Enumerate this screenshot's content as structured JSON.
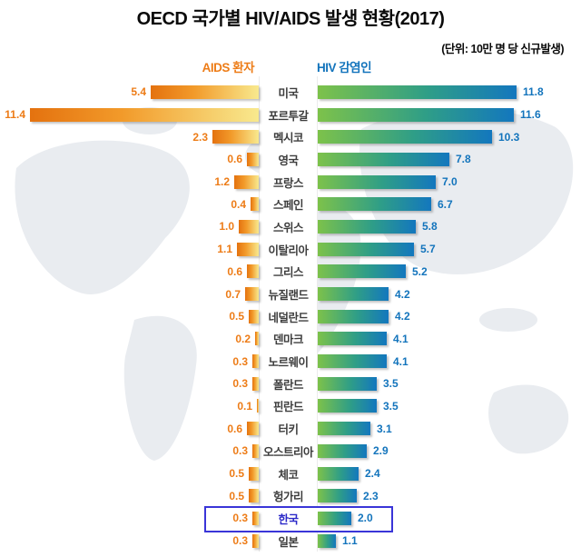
{
  "title": "OECD 국가별 HIV/AIDS 발생 현황(2017)",
  "unit_note": "(단위: 10만 명 당 신규발생)",
  "colors": {
    "title_text": "#0a0a0a",
    "left_accent": "#ed7c17",
    "right_accent": "#1374bc",
    "left_bar_tip": "#e4720f",
    "left_bar_mid": "#f29a2a",
    "left_bar_end": "#f8e98e",
    "right_bar_start": "#7dc24a",
    "right_bar_mid": "#2f9e87",
    "right_bar_end": "#1377be",
    "country_text": "#3d3d3d",
    "highlight_border": "#3a35d8",
    "highlight_text": "#2b29c8",
    "map_fill": "#e9ecf0"
  },
  "chart_data": {
    "type": "bar",
    "layout": "bidirectional-horizontal",
    "title": "OECD 국가별 HIV/AIDS 발생 현황(2017)",
    "unit": "10만 명 당 신규발생",
    "categories": [
      "미국",
      "포르투갈",
      "멕시코",
      "영국",
      "프랑스",
      "스페인",
      "스위스",
      "이탈리아",
      "그리스",
      "뉴질랜드",
      "네덜란드",
      "덴마크",
      "노르웨이",
      "폴란드",
      "핀란드",
      "터키",
      "오스트리아",
      "체코",
      "헝가리",
      "한국",
      "일본"
    ],
    "series": [
      {
        "name": "AIDS 환자",
        "direction": "left",
        "values": [
          5.4,
          11.4,
          2.3,
          0.6,
          1.2,
          0.4,
          1.0,
          1.1,
          0.6,
          0.7,
          0.5,
          0.2,
          0.3,
          0.3,
          0.1,
          0.6,
          0.3,
          0.5,
          0.5,
          0.3,
          0.3
        ]
      },
      {
        "name": "HIV 감염인",
        "direction": "right",
        "values": [
          11.8,
          11.6,
          10.3,
          7.8,
          7.0,
          6.7,
          5.8,
          5.7,
          5.2,
          4.2,
          4.2,
          4.1,
          4.1,
          3.5,
          3.5,
          3.1,
          2.9,
          2.4,
          2.3,
          2.0,
          1.1
        ]
      }
    ],
    "highlight_category": "한국",
    "value_format": "one-decimal",
    "legend_position": "top",
    "grid": false
  }
}
